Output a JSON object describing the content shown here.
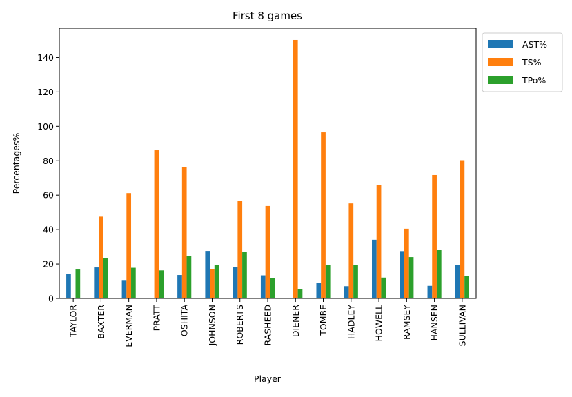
{
  "chart_data": {
    "type": "bar",
    "title": "First 8 games",
    "xlabel": "Player",
    "ylabel": "Percentages%",
    "ylim": [
      0,
      157
    ],
    "yticks": [
      0,
      20,
      40,
      60,
      80,
      100,
      120,
      140
    ],
    "categories": [
      "TAYLOR",
      "BAXTER",
      "EVERMAN",
      "PRATT",
      "OSHITA",
      "JOHNSON",
      "ROBERTS",
      "RASHEED",
      "DIENER",
      "TOMBE",
      "HADLEY",
      "HOWELL",
      "RAMSEY",
      "HANSEN",
      "SULLIVAN"
    ],
    "series": [
      {
        "name": "AST%",
        "color": "#1f77b4",
        "values": [
          14.3,
          18.0,
          10.7,
          0,
          13.6,
          27.6,
          18.4,
          13.4,
          0,
          9.2,
          7.1,
          34.1,
          27.5,
          7.3,
          19.6
        ]
      },
      {
        "name": "TS%",
        "color": "#ff7f0e",
        "values": [
          0,
          47.5,
          61.2,
          86.1,
          76.2,
          16.9,
          56.8,
          53.7,
          150.2,
          96.5,
          55.2,
          66.0,
          40.5,
          71.7,
          80.3
        ]
      },
      {
        "name": "TPo%",
        "color": "#2ca02c",
        "values": [
          16.8,
          23.3,
          17.8,
          16.3,
          24.8,
          19.6,
          26.9,
          12.0,
          5.6,
          19.3,
          19.6,
          12.1,
          24.0,
          28.1,
          13.1
        ]
      }
    ],
    "legend": "top-right, outside plot area"
  }
}
